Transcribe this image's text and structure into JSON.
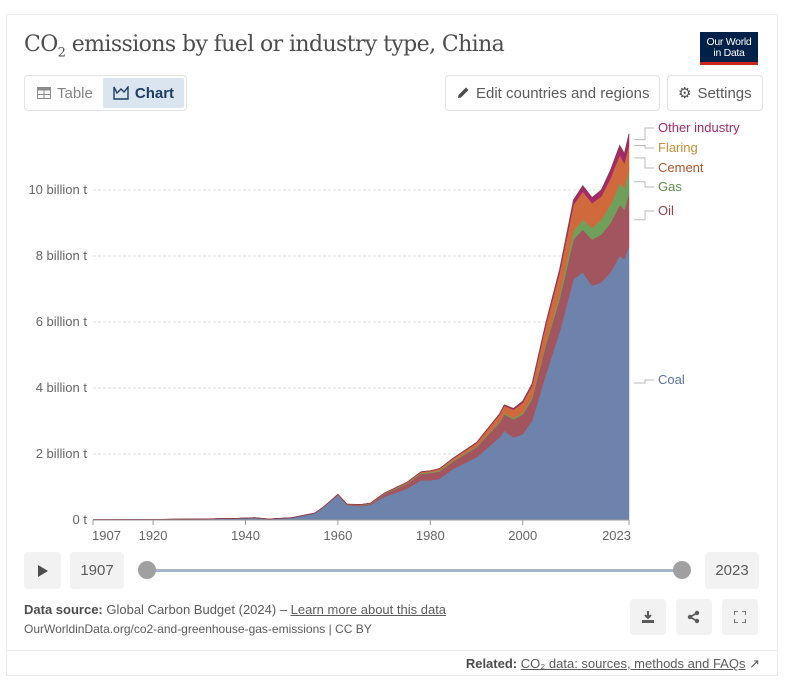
{
  "header": {
    "title_prefix": "CO",
    "title_sub": "2",
    "title_rest": " emissions by fuel or industry type, China",
    "logo_line1": "Our World",
    "logo_line2": "in Data"
  },
  "tabs": [
    {
      "label": "Table",
      "icon": "table-icon",
      "active": false
    },
    {
      "label": "Chart",
      "icon": "chart-icon",
      "active": true
    }
  ],
  "toolbar": {
    "edit_label": "Edit countries and regions",
    "settings_label": "Settings"
  },
  "timeline": {
    "start_year": "1907",
    "end_year": "2023",
    "play_icon": "play-icon"
  },
  "footer": {
    "source_label": "Data source:",
    "source_text": " Global Carbon Budget (2024) – ",
    "learn_more": "Learn more about this data",
    "url_text": "OurWorldinData.org/co2-and-greenhouse-gas-emissions | CC BY",
    "related_label": "Related:",
    "related_link": "CO₂ data: sources, methods and FAQs",
    "icons": [
      "download-icon",
      "share-icon",
      "fullscreen-icon"
    ]
  },
  "chart_data": {
    "type": "area",
    "stacked": true,
    "title": "CO₂ emissions by fuel or industry type, China",
    "xlabel": "",
    "ylabel": "",
    "x_ticks": [
      "1907",
      "1920",
      "1940",
      "1960",
      "1980",
      "2000",
      "2023"
    ],
    "y_ticks": [
      "0 t",
      "2 billion t",
      "4 billion t",
      "6 billion t",
      "8 billion t",
      "10 billion t"
    ],
    "ylim": [
      0,
      12
    ],
    "y_unit": "billion t",
    "grid": true,
    "legend": "right-inline",
    "x": [
      1907,
      1920,
      1930,
      1938,
      1942,
      1945,
      1950,
      1955,
      1957,
      1960,
      1962,
      1965,
      1967,
      1970,
      1975,
      1978,
      1980,
      1982,
      1985,
      1990,
      1995,
      1996,
      1998,
      2000,
      2002,
      2005,
      2008,
      2011,
      2013,
      2015,
      2017,
      2019,
      2021,
      2022,
      2023
    ],
    "series": [
      {
        "name": "Coal",
        "color": "#6d83ab",
        "values": [
          0.01,
          0.02,
          0.03,
          0.05,
          0.07,
          0.03,
          0.07,
          0.2,
          0.4,
          0.75,
          0.45,
          0.42,
          0.45,
          0.7,
          0.95,
          1.2,
          1.2,
          1.25,
          1.55,
          1.9,
          2.5,
          2.7,
          2.5,
          2.6,
          3.0,
          4.4,
          5.7,
          7.3,
          7.5,
          7.1,
          7.2,
          7.5,
          8.0,
          7.9,
          8.3
        ]
      },
      {
        "name": "Oil",
        "color": "#a2555e",
        "values": [
          0.0,
          0.0,
          0.0,
          0.0,
          0.0,
          0.0,
          0.0,
          0.01,
          0.01,
          0.02,
          0.02,
          0.03,
          0.04,
          0.08,
          0.15,
          0.2,
          0.22,
          0.22,
          0.23,
          0.3,
          0.45,
          0.5,
          0.55,
          0.6,
          0.65,
          0.9,
          1.0,
          1.2,
          1.3,
          1.4,
          1.45,
          1.5,
          1.55,
          1.5,
          1.6
        ]
      },
      {
        "name": "Gas",
        "color": "#6f9f5b",
        "values": [
          0,
          0,
          0,
          0,
          0,
          0,
          0,
          0,
          0,
          0.0,
          0.0,
          0.01,
          0.01,
          0.01,
          0.02,
          0.02,
          0.03,
          0.03,
          0.03,
          0.03,
          0.04,
          0.04,
          0.04,
          0.05,
          0.06,
          0.09,
          0.15,
          0.25,
          0.3,
          0.35,
          0.45,
          0.55,
          0.65,
          0.65,
          0.7
        ]
      },
      {
        "name": "Cement",
        "color": "#d06a3c",
        "values": [
          0,
          0,
          0,
          0,
          0,
          0,
          0,
          0,
          0.0,
          0.01,
          0.01,
          0.01,
          0.01,
          0.02,
          0.03,
          0.04,
          0.04,
          0.05,
          0.06,
          0.1,
          0.2,
          0.22,
          0.25,
          0.3,
          0.35,
          0.5,
          0.65,
          0.8,
          0.85,
          0.75,
          0.7,
          0.8,
          0.85,
          0.75,
          0.75
        ]
      },
      {
        "name": "Flaring",
        "color": "#c98d39",
        "values": [
          0,
          0,
          0,
          0,
          0,
          0,
          0,
          0,
          0,
          0,
          0,
          0,
          0,
          0,
          0.0,
          0.0,
          0.0,
          0.0,
          0.0,
          0.0,
          0.0,
          0.0,
          0.0,
          0.0,
          0.0,
          0.0,
          0.0,
          0.0,
          0.0,
          0.0,
          0.0,
          0.0,
          0.0,
          0.0,
          0.0
        ]
      },
      {
        "name": "Other industry",
        "color": "#a52a6a",
        "values": [
          0,
          0,
          0,
          0,
          0,
          0,
          0,
          0,
          0,
          0,
          0,
          0,
          0,
          0,
          0.0,
          0.0,
          0.0,
          0.01,
          0.01,
          0.02,
          0.03,
          0.03,
          0.04,
          0.05,
          0.06,
          0.08,
          0.1,
          0.15,
          0.18,
          0.17,
          0.2,
          0.25,
          0.3,
          0.3,
          0.35
        ]
      }
    ]
  }
}
